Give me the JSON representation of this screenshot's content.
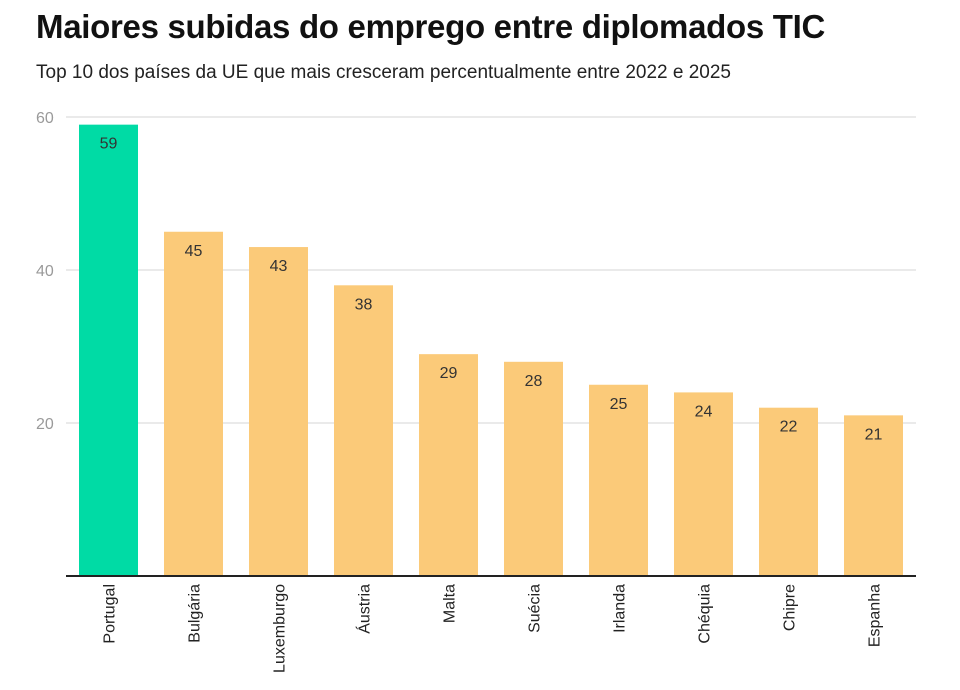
{
  "chart_data": {
    "type": "bar",
    "title": "Maiores subidas do emprego entre diplomados TIC",
    "subtitle": "Top 10 dos países da UE que mais cresceram percentualmente entre 2022 e 2025",
    "categories": [
      "Portugal",
      "Bulgária",
      "Luxemburgo",
      "Áustria",
      "Malta",
      "Suécia",
      "Irlanda",
      "Chéquia",
      "Chipre",
      "Espanha"
    ],
    "values": [
      59,
      45,
      43,
      38,
      29,
      28,
      25,
      24,
      22,
      21
    ],
    "yticks": [
      20,
      40,
      60
    ],
    "ylim": [
      0,
      60
    ],
    "grid": true,
    "xlabel": "",
    "ylabel": "",
    "colors": {
      "highlight": "#00dba5",
      "bar": "#fbca79",
      "grid": "#e3e3e3",
      "axis": "#222222"
    }
  }
}
